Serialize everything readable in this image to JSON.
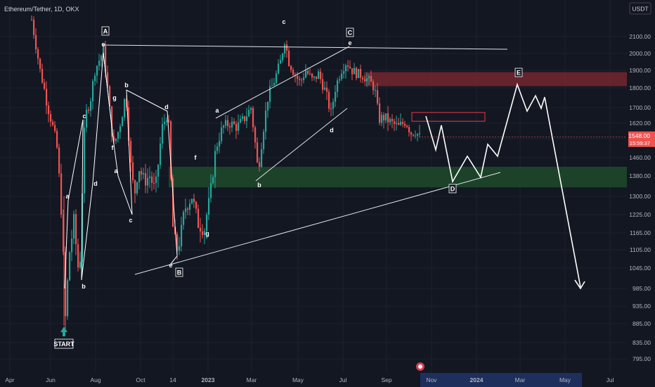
{
  "chart_data": {
    "type": "candlestick",
    "title": "Ethereum/Tether, 1D, OKX",
    "quote_currency": "USDT",
    "current_price": "1548.00",
    "countdown": "15:59:37",
    "y_ticks": [
      "2100.00",
      "2000.00",
      "1900.00",
      "1800.00",
      "1700.00",
      "1620.00",
      "1540.00",
      "1460.00",
      "1380.00",
      "1300.00",
      "1225.00",
      "1165.00",
      "1105.00",
      "1045.00",
      "985.00",
      "935.00",
      "885.00",
      "835.00",
      "795.00"
    ],
    "x_ticks": [
      "Apr",
      "Jun",
      "Aug",
      "Oct",
      "14",
      "2023",
      "Mar",
      "May",
      "Jul",
      "Sep",
      "Nov",
      "2024",
      "Mar",
      "May",
      "Jul"
    ],
    "colors": {
      "up": "#26a69a",
      "down": "#ef5350",
      "accent": "#2962ff"
    },
    "start_label": "START",
    "zones": [
      {
        "name": "resistance",
        "low": 1810,
        "high": 1890,
        "color": "#7a2730"
      },
      {
        "name": "support",
        "low": 1335,
        "high": 1420,
        "color": "#1f4a2a"
      },
      {
        "name": "box",
        "low": 1630,
        "high": 1675,
        "color": "#f23645"
      }
    ],
    "boxed_wave_labels": [
      "A",
      "B",
      "C",
      "D",
      "E"
    ],
    "wave_labels": [
      "a",
      "b",
      "c",
      "d",
      "e",
      "f",
      "g",
      "a",
      "b",
      "c",
      "d",
      "e",
      "a",
      "b",
      "c",
      "d",
      "e",
      "f",
      "g",
      "a",
      "b",
      "c",
      "d",
      "e"
    ],
    "notable_prices": {
      "start_low": "880",
      "A_high": "2030",
      "B_low": "1075",
      "C_high": "2130",
      "last": "1548"
    }
  }
}
